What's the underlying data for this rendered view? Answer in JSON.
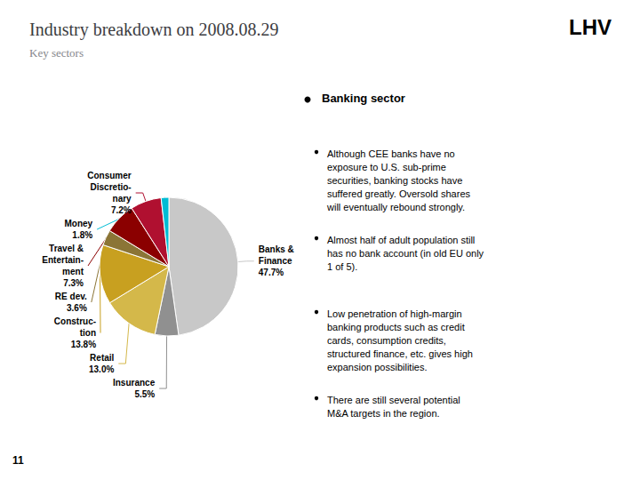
{
  "chart_data": {
    "type": "pie",
    "title": "Industry breakdown on 2008.08.29",
    "subtitle": "Key sectors",
    "categories": [
      "Banks &\nFinance",
      "Insurance",
      "Retail",
      "Construc-\ntion",
      "RE dev.",
      "Travel &\nEntertain-\nment",
      "Consumer\nDiscretio-\nnary",
      "Money"
    ],
    "values": [
      47.7,
      5.5,
      13.0,
      13.8,
      3.6,
      7.3,
      7.2,
      1.8
    ],
    "value_labels": [
      "47.7%",
      "5.5%",
      "13.0%",
      "13.8%",
      "3.6%",
      "7.3%",
      "7.2%",
      "1.8%"
    ],
    "colors": [
      "#c8c8c8",
      "#909090",
      "#d4b84a",
      "#c8a020",
      "#8b7536",
      "#8b0000",
      "#b01030",
      "#00bcd4"
    ],
    "data_labels": true,
    "annotations": [
      "LHV",
      "Banking sector",
      "Although CEE banks have no\nexposure to U.S. sub-prime\nsecurities, banking stocks have\nsuffered greatly. Oversold shares\nwill eventually rebound strongly.",
      "Almost half of adult population still\nhas no bank account (in old EU only\n1 of 5).",
      "Low penetration of high-margin\nbanking products such as credit\ncards, consumption credits,\nstructured finance, etc. gives high\nexpansion possibilities.",
      "There are still several potential\nM&A targets in the region.",
      "11"
    ]
  }
}
